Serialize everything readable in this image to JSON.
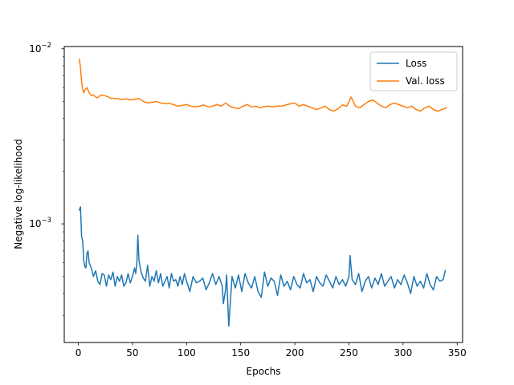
{
  "chart_data": {
    "type": "line",
    "title": "",
    "xlabel": "Epochs",
    "ylabel": "Negative log-likelihood",
    "xlim": [
      -13,
      355
    ],
    "ylim": [
      0.00021,
      0.0103
    ],
    "yscale": "log",
    "grid": false,
    "legend_position": "top-right",
    "x_ticks": [
      {
        "value": 0,
        "label": "0"
      },
      {
        "value": 50,
        "label": "50"
      },
      {
        "value": 100,
        "label": "100"
      },
      {
        "value": 150,
        "label": "150"
      },
      {
        "value": 200,
        "label": "200"
      },
      {
        "value": 250,
        "label": "250"
      },
      {
        "value": 300,
        "label": "300"
      },
      {
        "value": 350,
        "label": "350"
      }
    ],
    "y_ticks": [
      {
        "value": 0.001,
        "base": "10",
        "exp": "−3"
      },
      {
        "value": 0.01,
        "base": "10",
        "exp": "−2"
      }
    ],
    "series": [
      {
        "name": "Loss",
        "color": "#1f77b4",
        "x": [
          1,
          2,
          3,
          4,
          5,
          6,
          7,
          8,
          9,
          10,
          12,
          14,
          16,
          18,
          20,
          22,
          24,
          26,
          28,
          30,
          32,
          34,
          36,
          38,
          40,
          42,
          44,
          46,
          48,
          50,
          52,
          53,
          54,
          55,
          56,
          58,
          60,
          62,
          64,
          66,
          68,
          70,
          72,
          74,
          76,
          78,
          80,
          82,
          84,
          86,
          88,
          90,
          92,
          94,
          96,
          98,
          100,
          103,
          106,
          109,
          112,
          115,
          118,
          121,
          124,
          127,
          130,
          133,
          134,
          136,
          137,
          139,
          142,
          145,
          148,
          151,
          154,
          157,
          160,
          163,
          166,
          169,
          172,
          175,
          178,
          181,
          184,
          187,
          190,
          193,
          196,
          199,
          202,
          205,
          208,
          211,
          214,
          217,
          220,
          223,
          226,
          229,
          232,
          235,
          238,
          241,
          244,
          247,
          250,
          251,
          253,
          256,
          259,
          262,
          265,
          268,
          271,
          274,
          277,
          280,
          283,
          286,
          289,
          292,
          295,
          298,
          301,
          304,
          307,
          310,
          313,
          316,
          319,
          322,
          325,
          328,
          331,
          334,
          337,
          339
        ],
        "values": [
          0.0012,
          0.00125,
          0.00085,
          0.0008,
          0.00062,
          0.00057,
          0.00056,
          0.00068,
          0.0007,
          0.0006,
          0.00056,
          0.0005,
          0.00054,
          0.00047,
          0.00045,
          0.00052,
          0.00051,
          0.00044,
          0.00051,
          0.00048,
          0.00053,
          0.00044,
          0.0005,
          0.00047,
          0.00051,
          0.00044,
          0.00046,
          0.00052,
          0.00046,
          0.0005,
          0.00056,
          0.00052,
          0.00058,
          0.00086,
          0.00062,
          0.00053,
          0.00049,
          0.00047,
          0.00058,
          0.00044,
          0.0005,
          0.00047,
          0.00054,
          0.00046,
          0.00052,
          0.00044,
          0.00047,
          0.0005,
          0.00043,
          0.00052,
          0.00047,
          0.00048,
          0.00044,
          0.0005,
          0.00045,
          0.00052,
          0.00047,
          0.00041,
          0.0005,
          0.00046,
          0.00047,
          0.00049,
          0.00042,
          0.00046,
          0.00052,
          0.00045,
          0.0005,
          0.00044,
          0.00035,
          0.00042,
          0.00051,
          0.00026,
          0.0005,
          0.00043,
          0.00051,
          0.00041,
          0.00052,
          0.00046,
          0.00043,
          0.0005,
          0.00041,
          0.00038,
          0.00053,
          0.00044,
          0.00049,
          0.00047,
          0.00039,
          0.00051,
          0.00044,
          0.00047,
          0.00042,
          0.0005,
          0.00045,
          0.00043,
          0.00052,
          0.00046,
          0.00048,
          0.00041,
          0.0005,
          0.00046,
          0.00044,
          0.00051,
          0.00047,
          0.00043,
          0.0005,
          0.00045,
          0.00048,
          0.00044,
          0.0005,
          0.00066,
          0.00048,
          0.00045,
          0.00052,
          0.00041,
          0.00047,
          0.0005,
          0.00043,
          0.00049,
          0.00045,
          0.00052,
          0.00044,
          0.00047,
          0.0005,
          0.00043,
          0.00048,
          0.00045,
          0.00051,
          0.00046,
          0.0004,
          0.0005,
          0.00044,
          0.00047,
          0.00043,
          0.00052,
          0.00045,
          0.00042,
          0.0005,
          0.00047,
          0.00048,
          0.00054
        ]
      },
      {
        "name": "Val. loss",
        "color": "#ff7f0e",
        "x": [
          1,
          2,
          3,
          4,
          5,
          6,
          7,
          8,
          9,
          10,
          12,
          14,
          16,
          18,
          20,
          22,
          24,
          26,
          28,
          30,
          32,
          34,
          36,
          38,
          40,
          44,
          48,
          52,
          56,
          60,
          64,
          68,
          72,
          76,
          80,
          84,
          88,
          92,
          96,
          100,
          104,
          108,
          112,
          116,
          120,
          124,
          128,
          132,
          136,
          140,
          144,
          148,
          152,
          156,
          160,
          164,
          168,
          172,
          176,
          180,
          184,
          188,
          192,
          196,
          200,
          204,
          208,
          212,
          216,
          220,
          224,
          228,
          232,
          236,
          240,
          244,
          248,
          252,
          256,
          260,
          264,
          268,
          272,
          276,
          280,
          284,
          288,
          292,
          296,
          300,
          304,
          308,
          312,
          316,
          320,
          324,
          328,
          332,
          336,
          340
        ],
        "values": [
          0.0087,
          0.0078,
          0.0065,
          0.0059,
          0.0056,
          0.0058,
          0.0059,
          0.006,
          0.0058,
          0.0056,
          0.0054,
          0.00545,
          0.0053,
          0.00525,
          0.0054,
          0.00545,
          0.0054,
          0.00535,
          0.0053,
          0.0052,
          0.00522,
          0.00518,
          0.0052,
          0.00515,
          0.00512,
          0.00518,
          0.0051,
          0.00515,
          0.0052,
          0.005,
          0.0049,
          0.00495,
          0.005,
          0.0049,
          0.00485,
          0.00488,
          0.0048,
          0.0047,
          0.00475,
          0.0048,
          0.0047,
          0.00465,
          0.0047,
          0.00478,
          0.00465,
          0.0047,
          0.0048,
          0.0047,
          0.0049,
          0.0047,
          0.0046,
          0.00455,
          0.0047,
          0.0048,
          0.00465,
          0.0047,
          0.0046,
          0.00468,
          0.0047,
          0.00465,
          0.00472,
          0.0047,
          0.00478,
          0.00485,
          0.0049,
          0.0047,
          0.0048,
          0.0047,
          0.0046,
          0.0045,
          0.00458,
          0.0047,
          0.0045,
          0.0044,
          0.00455,
          0.00478,
          0.0047,
          0.0053,
          0.0047,
          0.0046,
          0.0048,
          0.005,
          0.0051,
          0.0049,
          0.0047,
          0.0046,
          0.0048,
          0.0049,
          0.0048,
          0.0047,
          0.0046,
          0.0047,
          0.0045,
          0.0044,
          0.0046,
          0.0047,
          0.0045,
          0.0044,
          0.0045,
          0.0046
        ]
      }
    ]
  }
}
